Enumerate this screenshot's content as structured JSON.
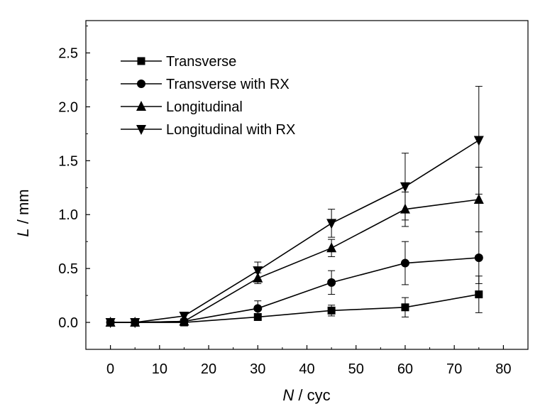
{
  "chart_data": {
    "type": "line",
    "title": "",
    "xlabel": {
      "symbol": "N",
      "unit": " / cyc"
    },
    "ylabel": {
      "symbol": "L",
      "unit": " / mm"
    },
    "xlim": [
      -5,
      85
    ],
    "ylim": [
      -0.25,
      2.8
    ],
    "xticks": [
      0,
      10,
      20,
      30,
      40,
      50,
      60,
      70,
      80
    ],
    "yticks": [
      0.0,
      0.5,
      1.0,
      1.5,
      2.0,
      2.5
    ],
    "grid": false,
    "legend_position": "top-left",
    "series": [
      {
        "name": "Transverse",
        "marker": "square",
        "x": [
          0,
          5,
          15,
          30,
          45,
          60,
          75
        ],
        "y": [
          0.0,
          0.0,
          0.0,
          0.05,
          0.11,
          0.14,
          0.26
        ],
        "err": [
          0,
          0,
          0,
          0.03,
          0.05,
          0.09,
          0.17
        ]
      },
      {
        "name": "Transverse with RX",
        "marker": "circle",
        "x": [
          0,
          5,
          15,
          30,
          45,
          60,
          75
        ],
        "y": [
          0.0,
          0.0,
          0.01,
          0.13,
          0.37,
          0.55,
          0.6
        ],
        "err": [
          0,
          0,
          0,
          0.07,
          0.11,
          0.2,
          0.24
        ]
      },
      {
        "name": "Longitudinal",
        "marker": "triangle-up",
        "x": [
          0,
          5,
          15,
          30,
          45,
          60,
          75
        ],
        "y": [
          0.0,
          0.0,
          0.01,
          0.41,
          0.69,
          1.05,
          1.14
        ],
        "err": [
          0,
          0,
          0,
          0.05,
          0.08,
          0.16,
          0.3
        ]
      },
      {
        "name": "Longitudinal  with RX",
        "marker": "triangle-down",
        "x": [
          0,
          5,
          15,
          30,
          45,
          60,
          75
        ],
        "y": [
          0.0,
          0.0,
          0.06,
          0.48,
          0.92,
          1.26,
          1.69
        ],
        "err": [
          0,
          0,
          0,
          0.08,
          0.13,
          0.31,
          0.5
        ]
      }
    ]
  }
}
